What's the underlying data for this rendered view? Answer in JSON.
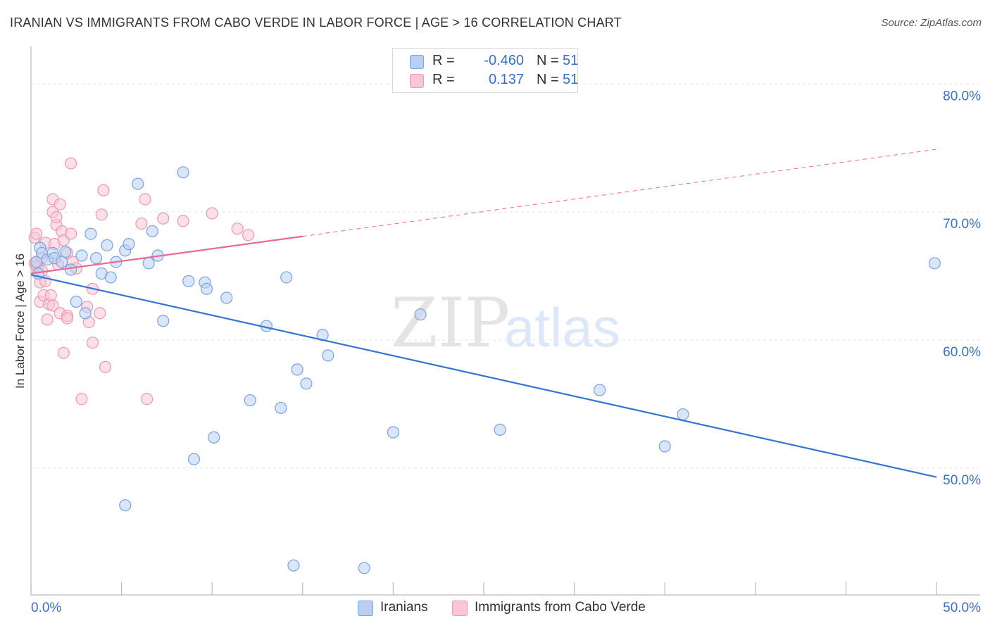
{
  "title": "IRANIAN VS IMMIGRANTS FROM CABO VERDE IN LABOR FORCE | AGE > 16 CORRELATION CHART",
  "source": "Source: ZipAtlas.com",
  "watermark": {
    "zip": "ZIP",
    "atlas": "atlas"
  },
  "legend_top": [
    {
      "r_label": "R =",
      "r_value": "-0.460",
      "n_label": "N =",
      "n_value": "51"
    },
    {
      "r_label": "R =",
      "r_value": "0.137",
      "n_label": "N =",
      "n_value": "51"
    }
  ],
  "legend_bottom": [
    {
      "label": "Iranians"
    },
    {
      "label": "Immigrants from Cabo Verde"
    }
  ],
  "colors": {
    "blue_fill": "#b9d0f3",
    "blue_stroke": "#7aa3e0",
    "blue_line": "#3376d0",
    "pink_fill": "#f8c6d4",
    "pink_stroke": "#eb9ab3",
    "pink_line": "#e8699a",
    "tick_label": "#3a6fc8",
    "grid": "#e3e3e3"
  },
  "chart_data": {
    "type": "scatter",
    "title": "IRANIAN VS IMMIGRANTS FROM CABO VERDE IN LABOR FORCE | AGE > 16 CORRELATION CHART",
    "xlabel": "",
    "ylabel": "In Labor Force | Age > 16",
    "xlim": [
      0,
      50
    ],
    "ylim": [
      40.1,
      82.6
    ],
    "x_tick_labels": [
      "0.0%",
      "50.0%"
    ],
    "y_ticks": [
      50,
      60,
      70,
      80
    ],
    "y_tick_labels": [
      "50.0%",
      "60.0%",
      "70.0%",
      "80.0%"
    ],
    "grid": true,
    "legend_position": "top-center",
    "series": [
      {
        "name": "Iranians",
        "points": [
          [
            0.3,
            66.1
          ],
          [
            0.4,
            65.2
          ],
          [
            0.5,
            67.2
          ],
          [
            0.6,
            66.8
          ],
          [
            0.9,
            66.3
          ],
          [
            1.2,
            66.8
          ],
          [
            1.3,
            66.4
          ],
          [
            1.7,
            66.1
          ],
          [
            1.9,
            66.9
          ],
          [
            2.2,
            65.5
          ],
          [
            2.5,
            63.0
          ],
          [
            2.8,
            66.6
          ],
          [
            3.0,
            62.1
          ],
          [
            3.3,
            68.3
          ],
          [
            3.6,
            66.4
          ],
          [
            3.9,
            65.2
          ],
          [
            4.2,
            67.4
          ],
          [
            4.4,
            64.9
          ],
          [
            4.7,
            66.1
          ],
          [
            5.2,
            67.0
          ],
          [
            5.4,
            67.5
          ],
          [
            5.9,
            72.2
          ],
          [
            6.5,
            66.0
          ],
          [
            6.7,
            68.5
          ],
          [
            7.0,
            66.6
          ],
          [
            7.3,
            61.5
          ],
          [
            8.4,
            73.1
          ],
          [
            8.7,
            64.6
          ],
          [
            9.0,
            50.7
          ],
          [
            9.6,
            64.5
          ],
          [
            9.7,
            64.0
          ],
          [
            10.1,
            52.4
          ],
          [
            10.8,
            63.3
          ],
          [
            12.1,
            55.3
          ],
          [
            13.0,
            61.1
          ],
          [
            13.8,
            54.7
          ],
          [
            14.1,
            64.9
          ],
          [
            14.5,
            42.4
          ],
          [
            14.7,
            57.7
          ],
          [
            15.2,
            56.6
          ],
          [
            16.1,
            60.4
          ],
          [
            16.4,
            58.8
          ],
          [
            18.4,
            42.2
          ],
          [
            20.0,
            52.8
          ],
          [
            21.5,
            62.0
          ],
          [
            25.9,
            53.0
          ],
          [
            31.4,
            56.1
          ],
          [
            35.0,
            51.7
          ],
          [
            36.0,
            54.2
          ],
          [
            49.9,
            66.0
          ],
          [
            5.2,
            47.1
          ]
        ],
        "trend": {
          "x": [
            0,
            50
          ],
          "y": [
            65.1,
            49.3
          ]
        }
      },
      {
        "name": "Immigrants from Cabo Verde",
        "points": [
          [
            0.2,
            68.0
          ],
          [
            0.2,
            66.0
          ],
          [
            0.3,
            68.3
          ],
          [
            0.4,
            65.7
          ],
          [
            0.5,
            64.5
          ],
          [
            0.5,
            63.0
          ],
          [
            0.6,
            66.4
          ],
          [
            0.7,
            63.5
          ],
          [
            0.8,
            67.6
          ],
          [
            0.8,
            64.6
          ],
          [
            0.9,
            61.6
          ],
          [
            1.0,
            62.8
          ],
          [
            1.1,
            63.5
          ],
          [
            1.2,
            62.7
          ],
          [
            1.2,
            70.0
          ],
          [
            1.2,
            71.0
          ],
          [
            1.3,
            67.5
          ],
          [
            1.4,
            69.0
          ],
          [
            1.4,
            69.6
          ],
          [
            1.6,
            62.1
          ],
          [
            1.6,
            70.6
          ],
          [
            1.7,
            68.5
          ],
          [
            1.8,
            59.0
          ],
          [
            1.8,
            67.8
          ],
          [
            2.0,
            66.8
          ],
          [
            2.0,
            61.9
          ],
          [
            2.0,
            61.7
          ],
          [
            2.2,
            68.3
          ],
          [
            2.2,
            73.8
          ],
          [
            2.3,
            66.1
          ],
          [
            2.5,
            65.6
          ],
          [
            2.8,
            55.4
          ],
          [
            3.1,
            62.6
          ],
          [
            3.2,
            61.4
          ],
          [
            3.4,
            59.8
          ],
          [
            3.4,
            64.0
          ],
          [
            3.8,
            62.1
          ],
          [
            3.9,
            69.8
          ],
          [
            4.0,
            71.7
          ],
          [
            4.1,
            57.9
          ],
          [
            6.1,
            69.1
          ],
          [
            6.3,
            71.0
          ],
          [
            6.4,
            55.4
          ],
          [
            7.3,
            69.5
          ],
          [
            8.4,
            69.3
          ],
          [
            10.0,
            69.9
          ],
          [
            11.4,
            68.7
          ],
          [
            12.0,
            68.2
          ],
          [
            0.3,
            65.8
          ],
          [
            0.6,
            65.4
          ],
          [
            1.5,
            65.9
          ]
        ],
        "trend": {
          "x": [
            0,
            15
          ],
          "y": [
            65.2,
            68.1
          ]
        },
        "trend_extension": {
          "x": [
            15,
            50
          ],
          "y": [
            68.1,
            74.9
          ]
        }
      }
    ]
  }
}
